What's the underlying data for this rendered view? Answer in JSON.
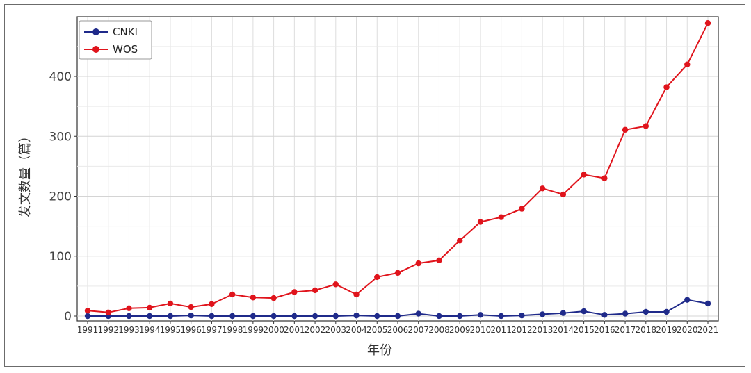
{
  "chart_data": {
    "type": "line",
    "title": "",
    "xlabel": "年份",
    "ylabel": "发文数量（篇）",
    "ylim": [
      0,
      500
    ],
    "yticks": [
      0,
      100,
      200,
      300,
      400
    ],
    "grid": true,
    "legend_position": "top-left",
    "x": [
      1991,
      1992,
      1993,
      1994,
      1995,
      1996,
      1997,
      1998,
      1999,
      2000,
      2001,
      2002,
      2003,
      2004,
      2005,
      2006,
      2007,
      2008,
      2009,
      2010,
      2011,
      2012,
      2013,
      2014,
      2015,
      2016,
      2017,
      2018,
      2019,
      2020,
      2021
    ],
    "x_labels": [
      "1991",
      "1992",
      "1993",
      "1994",
      "1995",
      "1996",
      "1997",
      "1998",
      "1999",
      "2000",
      "2001",
      "2002",
      "2003",
      "2004",
      "2005",
      "2006",
      "2007",
      "2008",
      "2009",
      "2010",
      "2011",
      "2012",
      "2013",
      "2014",
      "2015",
      "2016",
      "2017",
      "2018",
      "2019",
      "2020",
      "2021"
    ],
    "series": [
      {
        "name": "CNKI",
        "color": "#1f2a8a",
        "values": [
          0,
          0,
          0,
          0,
          0,
          1,
          0,
          0,
          0,
          0,
          0,
          0,
          0,
          1,
          0,
          0,
          4,
          0,
          0,
          2,
          0,
          1,
          3,
          5,
          8,
          2,
          4,
          7,
          7,
          27,
          21
        ]
      },
      {
        "name": "WOS",
        "color": "#e0141c",
        "values": [
          9,
          6,
          13,
          14,
          21,
          15,
          20,
          36,
          31,
          30,
          40,
          43,
          53,
          36,
          65,
          72,
          88,
          93,
          126,
          157,
          165,
          179,
          213,
          203,
          236,
          230,
          311,
          317,
          382,
          420,
          489
        ]
      }
    ]
  }
}
